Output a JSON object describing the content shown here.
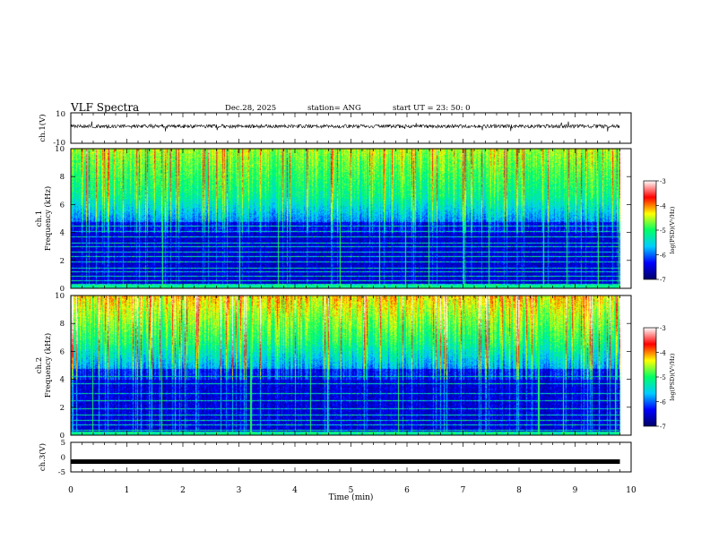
{
  "header": {
    "title": "VLF Spectra",
    "date": "Dec.28, 2025",
    "station": "station= ANG",
    "start": "start  UT =   23: 50: 0"
  },
  "panels": {
    "ch1_waveform": {
      "ylabel": "ch.1(V)",
      "ymax_label": "10",
      "ymin_label": "-10",
      "ylim": [
        -10,
        10
      ]
    },
    "ch1_spectrogram": {
      "ylabel_top": "ch.1",
      "ylabel": "Frequency  (kHz)",
      "yticks": [
        "0",
        "2",
        "4",
        "6",
        "8",
        "10"
      ],
      "ylim": [
        0,
        10
      ],
      "colorbar": {
        "label": "log(PSD)(V²/Hz)",
        "ticks": [
          "-3",
          "-4",
          "-5",
          "-6",
          "-7"
        ],
        "range": [
          -7,
          -3
        ]
      }
    },
    "ch2_spectrogram": {
      "ylabel_top": "ch.2",
      "ylabel": "Frequency  (kHz)",
      "yticks": [
        "0",
        "2",
        "4",
        "6",
        "8",
        "10"
      ],
      "ylim": [
        0,
        10
      ],
      "colorbar": {
        "label": "log(PSD)(V²/Hz)",
        "ticks": [
          "-3",
          "-4",
          "-5",
          "-6",
          "-7"
        ],
        "range": [
          -7,
          -3
        ]
      }
    },
    "ch3_waveform": {
      "ylabel": "ch.3(V)",
      "yticks": [
        "5",
        "0",
        "-5"
      ],
      "ylim": [
        -5,
        5
      ],
      "level": -1.5
    }
  },
  "chart_data": {
    "type": "heatmap",
    "title": "VLF Spectra",
    "xlabel": "Time  (min)",
    "xticks": [
      "0",
      "1",
      "2",
      "3",
      "4",
      "5",
      "6",
      "7",
      "8",
      "9",
      "10"
    ],
    "xlim": [
      0,
      10
    ],
    "data_end_min": 9.8,
    "ylabel": "Frequency (kHz)",
    "ylim": [
      0,
      10
    ],
    "colorscale": [
      "#000066",
      "#0000ff",
      "#00ccff",
      "#00ff66",
      "#ffff00",
      "#ff0000",
      "#ffffff"
    ],
    "ch1_narrowband_kHz": [
      0.3,
      0.6,
      0.9,
      1.2,
      1.5,
      1.9,
      2.3,
      2.6,
      3.0,
      3.3,
      3.7,
      4.1,
      4.5
    ],
    "ch2_narrowband_kHz": [
      0.4,
      0.8,
      1.1,
      1.5,
      1.9,
      2.5,
      3.0,
      3.7,
      4.2
    ]
  }
}
